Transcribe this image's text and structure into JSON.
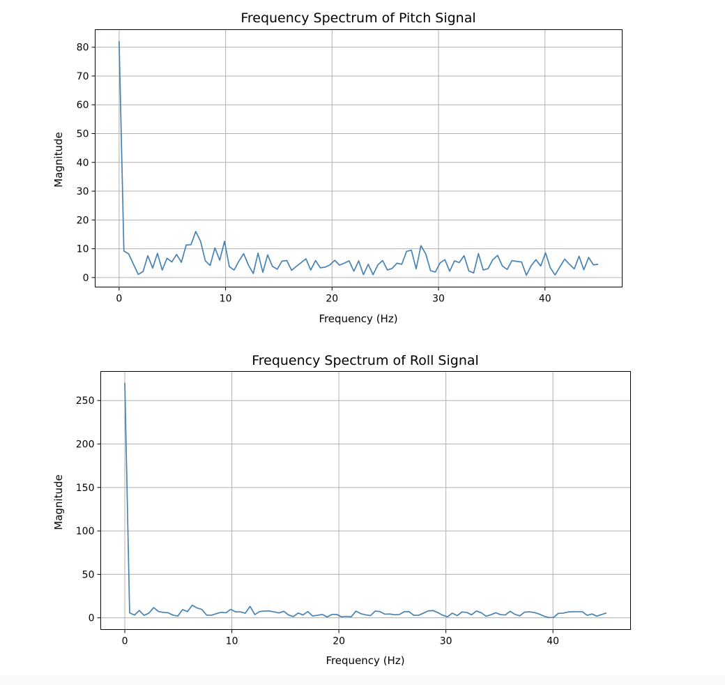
{
  "chart_data": [
    {
      "type": "line",
      "title": "Frequency Spectrum of Pitch Signal",
      "xlabel": "Frequency (Hz)",
      "ylabel": "Magnitude",
      "xlim": [
        -2.25,
        47.25
      ],
      "ylim": [
        -3.3,
        86.1
      ],
      "xticks": [
        0,
        10,
        20,
        30,
        40
      ],
      "yticks": [
        0,
        10,
        20,
        30,
        40,
        50,
        60,
        70,
        80
      ],
      "grid": true,
      "color": "#4682b4",
      "series": [
        {
          "x": [
            0,
            0.45,
            0.9,
            1.35,
            1.8,
            2.25,
            2.7,
            3.15,
            3.6,
            4.05,
            4.5,
            4.95,
            5.4,
            5.85,
            6.3,
            6.75,
            7.2,
            7.65,
            8.1,
            8.55,
            9.0,
            9.45,
            9.9,
            10.35,
            10.8,
            11.25,
            11.7,
            12.15,
            12.6,
            13.05,
            13.5,
            13.95,
            14.4,
            14.85,
            15.3,
            15.75,
            16.2,
            16.65,
            17.1,
            17.55,
            18.0,
            18.45,
            18.9,
            19.35,
            19.8,
            20.25,
            20.7,
            21.15,
            21.6,
            22.05,
            22.5,
            22.95,
            23.4,
            23.85,
            24.3,
            24.75,
            25.2,
            25.65,
            26.1,
            26.55,
            27.0,
            27.45,
            27.9,
            28.35,
            28.8,
            29.25,
            29.7,
            30.15,
            30.6,
            31.05,
            31.5,
            31.95,
            32.4,
            32.85,
            33.3,
            33.75,
            34.2,
            34.65,
            35.1,
            35.55,
            36.0,
            36.45,
            36.9,
            37.35,
            37.8,
            38.25,
            38.7,
            39.15,
            39.6,
            40.05,
            40.5,
            40.95,
            41.4,
            41.85,
            42.3,
            42.75,
            43.2,
            43.65,
            44.1,
            44.55,
            45.0
          ],
          "values": [
            82.1,
            9.2,
            8.2,
            4.6,
            1.1,
            2.1,
            7.6,
            3.3,
            8.4,
            2.6,
            6.7,
            5.4,
            8.0,
            5.3,
            11.3,
            11.4,
            16.0,
            12.6,
            5.8,
            4.2,
            10.3,
            6.0,
            12.6,
            3.8,
            2.6,
            5.7,
            8.3,
            4.3,
            1.4,
            8.5,
            1.8,
            7.9,
            3.9,
            2.9,
            5.7,
            5.9,
            2.5,
            3.9,
            5.2,
            6.5,
            2.6,
            5.9,
            3.4,
            3.6,
            4.4,
            6.0,
            4.3,
            5.0,
            5.8,
            2.2,
            5.8,
            1.0,
            4.6,
            1.0,
            4.4,
            5.9,
            2.6,
            3.2,
            5.0,
            4.6,
            9.1,
            9.5,
            3.0,
            11.1,
            8.2,
            2.4,
            1.9,
            5.1,
            6.2,
            2.2,
            5.8,
            5.2,
            7.6,
            2.3,
            1.6,
            8.3,
            2.6,
            3.1,
            6.2,
            7.7,
            4.0,
            2.8,
            5.9,
            5.6,
            5.4,
            0.8,
            4.1,
            6.2,
            4.0,
            8.6,
            3.4,
            0.9,
            3.7,
            6.4,
            4.6,
            3.0,
            7.4,
            2.7,
            7.0,
            4.4,
            4.6
          ]
        }
      ]
    },
    {
      "type": "line",
      "title": "Frequency Spectrum of Roll Signal",
      "xlabel": "Frequency (Hz)",
      "ylabel": "Magnitude",
      "xlim": [
        -2.25,
        47.25
      ],
      "ylim": [
        -13.5,
        283.5
      ],
      "xticks": [
        0,
        10,
        20,
        30,
        40
      ],
      "yticks": [
        0,
        50,
        100,
        150,
        200,
        250
      ],
      "grid": true,
      "color": "#4682b4",
      "series": [
        {
          "x": [
            0,
            0.45,
            0.9,
            1.35,
            1.8,
            2.25,
            2.7,
            3.15,
            3.6,
            4.05,
            4.5,
            4.95,
            5.4,
            5.85,
            6.3,
            6.75,
            7.2,
            7.65,
            8.1,
            8.55,
            9.0,
            9.45,
            9.9,
            10.35,
            10.8,
            11.25,
            11.7,
            12.15,
            12.6,
            13.05,
            13.5,
            13.95,
            14.4,
            14.85,
            15.3,
            15.75,
            16.2,
            16.65,
            17.1,
            17.55,
            18.0,
            18.45,
            18.9,
            19.35,
            19.8,
            20.25,
            20.7,
            21.15,
            21.6,
            22.05,
            22.5,
            22.95,
            23.4,
            23.85,
            24.3,
            24.75,
            25.2,
            25.65,
            26.1,
            26.55,
            27.0,
            27.45,
            27.9,
            28.35,
            28.8,
            29.25,
            29.7,
            30.15,
            30.6,
            31.05,
            31.5,
            31.95,
            32.4,
            32.85,
            33.3,
            33.75,
            34.2,
            34.65,
            35.1,
            35.55,
            36.0,
            36.45,
            36.9,
            37.35,
            37.8,
            38.25,
            38.7,
            39.15,
            39.6,
            40.05,
            40.5,
            40.95,
            41.4,
            41.85,
            42.3,
            42.75,
            43.2,
            43.65,
            44.1,
            44.55,
            45.0
          ],
          "values": [
            270.5,
            5.8,
            3.2,
            8.5,
            2.8,
            5.4,
            11.8,
            7.2,
            6.2,
            5.8,
            3.1,
            2.0,
            9.5,
            7.1,
            14.5,
            11.3,
            9.6,
            3.0,
            3.0,
            4.8,
            6.3,
            5.8,
            9.7,
            6.9,
            6.8,
            5.3,
            13.1,
            3.7,
            7.2,
            7.8,
            7.8,
            6.8,
            5.6,
            7.5,
            3.2,
            1.4,
            5.5,
            3.3,
            7.2,
            2.1,
            2.9,
            3.9,
            1.0,
            3.9,
            3.9,
            1.1,
            1.7,
            1.1,
            7.7,
            4.8,
            3.4,
            2.5,
            7.8,
            7.1,
            4.2,
            4.4,
            3.5,
            3.8,
            7.0,
            7.1,
            2.9,
            2.9,
            5.4,
            8.0,
            8.3,
            6.0,
            3.0,
            1.2,
            5.4,
            2.5,
            6.7,
            6.2,
            3.5,
            7.8,
            5.8,
            1.8,
            3.5,
            5.8,
            3.7,
            3.3,
            7.5,
            4.0,
            2.2,
            6.5,
            6.9,
            6.1,
            4.4,
            2.0,
            0.3,
            0.4,
            5.1,
            5.3,
            6.7,
            7.0,
            7.0,
            7.0,
            2.8,
            4.4,
            1.9,
            3.8,
            5.6
          ]
        }
      ]
    }
  ]
}
